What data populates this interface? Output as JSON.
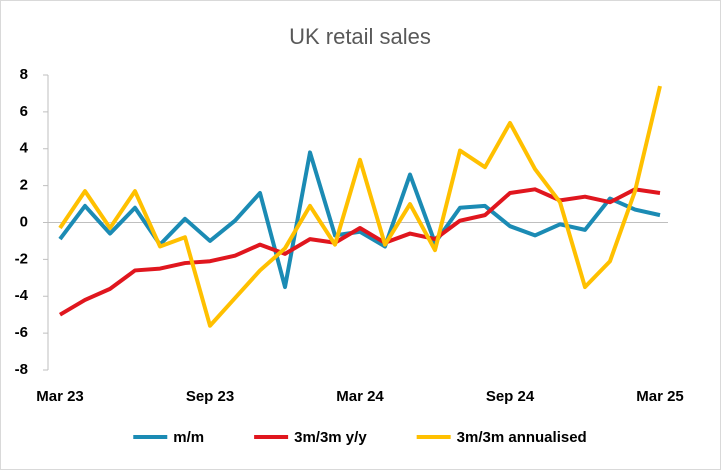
{
  "chart_data": {
    "type": "line",
    "title": "UK retail sales",
    "categories": [
      "Mar 23",
      null,
      null,
      null,
      null,
      null,
      "Sep 23",
      null,
      null,
      null,
      null,
      null,
      "Mar 24",
      null,
      null,
      null,
      null,
      null,
      "Sep 24",
      null,
      null,
      null,
      null,
      null,
      "Mar 25"
    ],
    "series": [
      {
        "name": "m/m",
        "color": "#1b8bb4",
        "values": [
          -0.9,
          0.9,
          -0.6,
          0.8,
          -1.2,
          0.2,
          -1.0,
          0.1,
          1.6,
          -3.5,
          3.8,
          -0.7,
          -0.5,
          -1.3,
          2.6,
          -1.1,
          0.8,
          0.9,
          -0.2,
          -0.7,
          -0.1,
          -0.4,
          1.3,
          0.7,
          0.4
        ]
      },
      {
        "name": "3m/3m y/y",
        "color": "#e0161e",
        "values": [
          -5.0,
          -4.2,
          -3.6,
          -2.6,
          -2.5,
          -2.2,
          -2.1,
          -1.8,
          -1.2,
          -1.7,
          -0.9,
          -1.1,
          -0.3,
          -1.1,
          -0.6,
          -0.9,
          0.1,
          0.4,
          1.6,
          1.8,
          1.2,
          1.4,
          1.1,
          1.8,
          1.6
        ]
      },
      {
        "name": "3m/3m annualised",
        "color": "#ffc000",
        "values": [
          -0.3,
          1.7,
          -0.3,
          1.7,
          -1.3,
          -0.8,
          -5.6,
          -4.1,
          -2.6,
          -1.4,
          0.9,
          -1.2,
          3.4,
          -1.2,
          1.0,
          -1.5,
          3.9,
          3.0,
          5.4,
          2.9,
          1.1,
          -3.5,
          -2.1,
          1.7,
          7.4
        ]
      }
    ],
    "ylim": [
      -8,
      8
    ],
    "yticks": [
      -8,
      -6,
      -4,
      -2,
      0,
      2,
      4,
      6,
      8
    ],
    "grid": false,
    "legend": "bottom"
  }
}
